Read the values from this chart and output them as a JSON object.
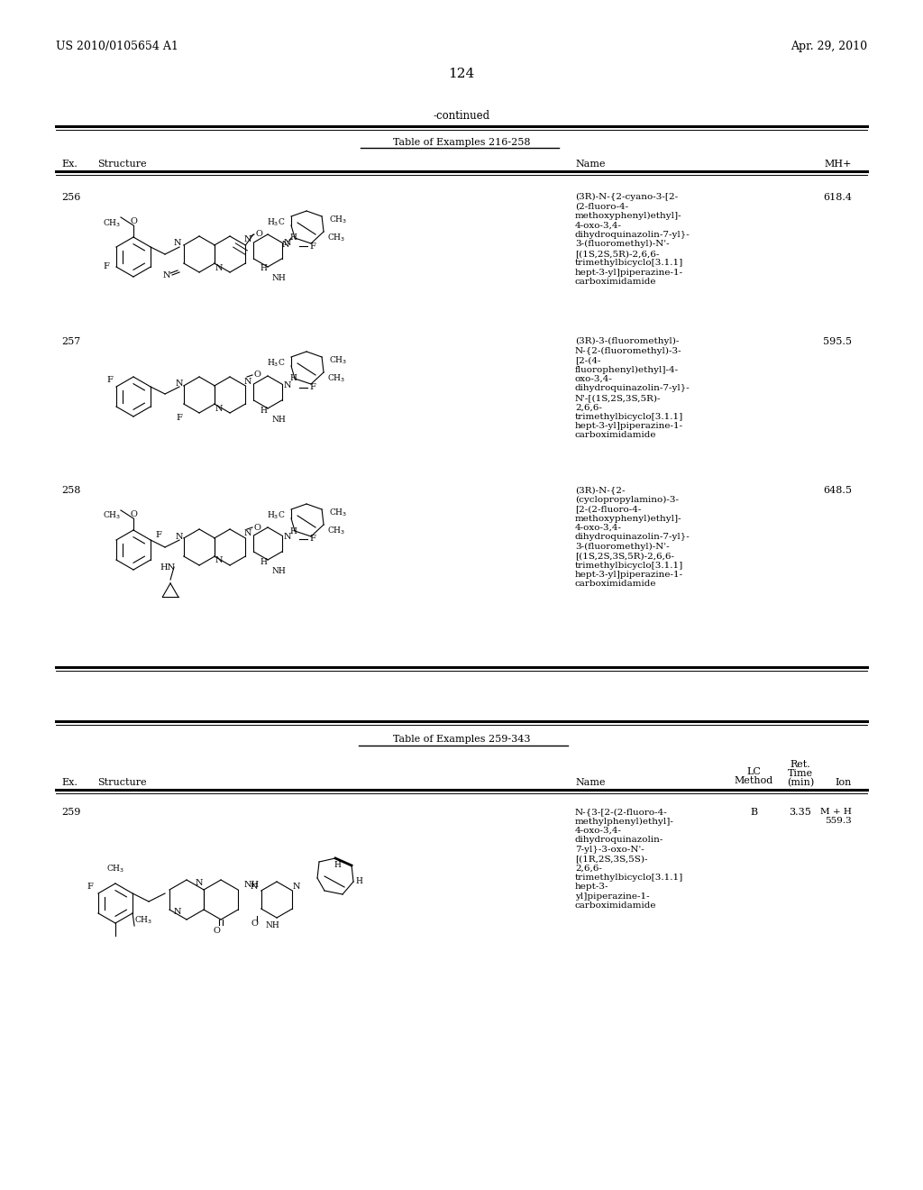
{
  "page_number": "124",
  "left_header": "US 2010/0105654 A1",
  "right_header": "Apr. 29, 2010",
  "continued_text": "-continued",
  "table1_title": "Table of Examples 216-258",
  "table1_headers": [
    "Ex.",
    "Structure",
    "Name",
    "MH+"
  ],
  "table2_title": "Table of Examples 259-343",
  "table2_headers": [
    "Ex.",
    "Structure",
    "Name",
    "LC\nMethod",
    "Ret.\nTime\n(min)",
    "Ion"
  ],
  "background_color": "#ffffff",
  "text_color": "#000000",
  "example256_num": "256",
  "example256_mhplus": "618.4",
  "example256_name": "(3R)-N-{2-cyano-3-[2-\n(2-fluoro-4-\nmethoxyphenyl)ethyl]-\n4-oxo-3,4-\ndihydroquinazolin-7-yl}-\n3-(fluoromethyl)-N'-\n[(1S,2S,5R)-2,6,6-\ntrimethylbicyclo[3.1.1]\nhept-3-yl]piperazine-1-\ncarboximidamide",
  "example257_num": "257",
  "example257_mhplus": "595.5",
  "example257_name": "(3R)-3-(fluoromethyl)-\nN-{2-(fluoromethyl)-3-\n[2-(4-\nfluorophenyl)ethyl]-4-\noxo-3,4-\ndihydroquinazolin-7-yl}-\nN'-[(1S,2S,3S,5R)-\n2,6,6-\ntrimethylbicyclo[3.1.1]\nhept-3-yl]piperazine-1-\ncarboximidamide",
  "example258_num": "258",
  "example258_mhplus": "648.5",
  "example258_name": "(3R)-N-{2-\n(cyclopropylamino)-3-\n[2-(2-fluoro-4-\nmethoxyphenyl)ethyl]-\n4-oxo-3,4-\ndihydroquinazolin-7-yl}-\n3-(fluoromethyl)-N'-\n[(1S,2S,3S,5R)-2,6,6-\ntrimethylbicyclo[3.1.1]\nhept-3-yl]piperazine-1-\ncarboximidamide",
  "example259_num": "259",
  "example259_lc": "B",
  "example259_ret": "3.35",
  "example259_ion": "M + H\n559.3",
  "example259_name": "N-{3-[2-(2-fluoro-4-\nmethylphenyl)ethyl]-\n4-oxo-3,4-\ndihydroquinazolin-\n7-yl}-3-oxo-N'-\n[(1R,2S,3S,5S)-\n2,6,6-\ntrimethylbicyclo[3.1.1]\nhept-3-\nyl]piperazine-1-\ncarboximidamide"
}
